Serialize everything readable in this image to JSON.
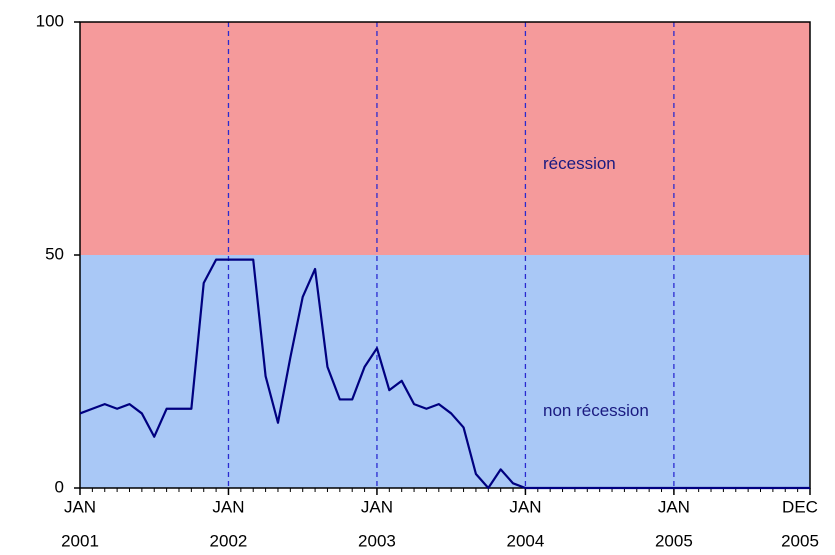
{
  "chart_data": {
    "type": "line",
    "x": [
      "2001-01",
      "2001-02",
      "2001-03",
      "2001-04",
      "2001-05",
      "2001-06",
      "2001-07",
      "2001-08",
      "2001-09",
      "2001-10",
      "2001-11",
      "2001-12",
      "2002-01",
      "2002-02",
      "2002-03",
      "2002-04",
      "2002-05",
      "2002-06",
      "2002-07",
      "2002-08",
      "2002-09",
      "2002-10",
      "2002-11",
      "2002-12",
      "2003-01",
      "2003-02",
      "2003-03",
      "2003-04",
      "2003-05",
      "2003-06",
      "2003-07",
      "2003-08",
      "2003-09",
      "2003-10",
      "2003-11",
      "2003-12",
      "2004-01",
      "2004-02",
      "2004-03",
      "2004-04",
      "2004-05",
      "2004-06",
      "2004-07",
      "2004-08",
      "2004-09",
      "2004-10",
      "2004-11",
      "2004-12",
      "2005-01",
      "2005-02",
      "2005-03",
      "2005-04",
      "2005-05",
      "2005-06",
      "2005-07",
      "2005-08",
      "2005-09",
      "2005-10",
      "2005-11",
      "2005-12"
    ],
    "series": [
      {
        "color": "#000080",
        "values": [
          16,
          17,
          18,
          17,
          18,
          16,
          11,
          17,
          17,
          17,
          44,
          49,
          49,
          49,
          49,
          24,
          14,
          28,
          41,
          47,
          26,
          19,
          19,
          26,
          30,
          21,
          23,
          18,
          17,
          18,
          16,
          13,
          3,
          0,
          4,
          1,
          0,
          0,
          0,
          0,
          0,
          0,
          0,
          0,
          0,
          0,
          0,
          0,
          0,
          0,
          0,
          0,
          0,
          0,
          0,
          0,
          0,
          0,
          0,
          0
        ]
      }
    ],
    "xticks": [
      {
        "value": "2001-01",
        "label": [
          "JAN",
          "2001"
        ]
      },
      {
        "value": "2002-01",
        "label": [
          "JAN",
          "2002"
        ]
      },
      {
        "value": "2003-01",
        "label": [
          "JAN",
          "2003"
        ]
      },
      {
        "value": "2004-01",
        "label": [
          "JAN",
          "2004"
        ]
      },
      {
        "value": "2005-01",
        "label": [
          "JAN",
          "2005"
        ]
      },
      {
        "value": "2005-12",
        "label": [
          "DEC",
          "2005"
        ]
      }
    ],
    "ylim": [
      0,
      100
    ],
    "yticks": [
      0,
      50,
      100
    ],
    "grid": true,
    "bands": [
      {
        "from": 50,
        "to": 100,
        "color": "#f59a9b",
        "label": "récession"
      },
      {
        "from": 0,
        "to": 50,
        "color": "#a9c8f6",
        "label": "non récession"
      }
    ]
  }
}
